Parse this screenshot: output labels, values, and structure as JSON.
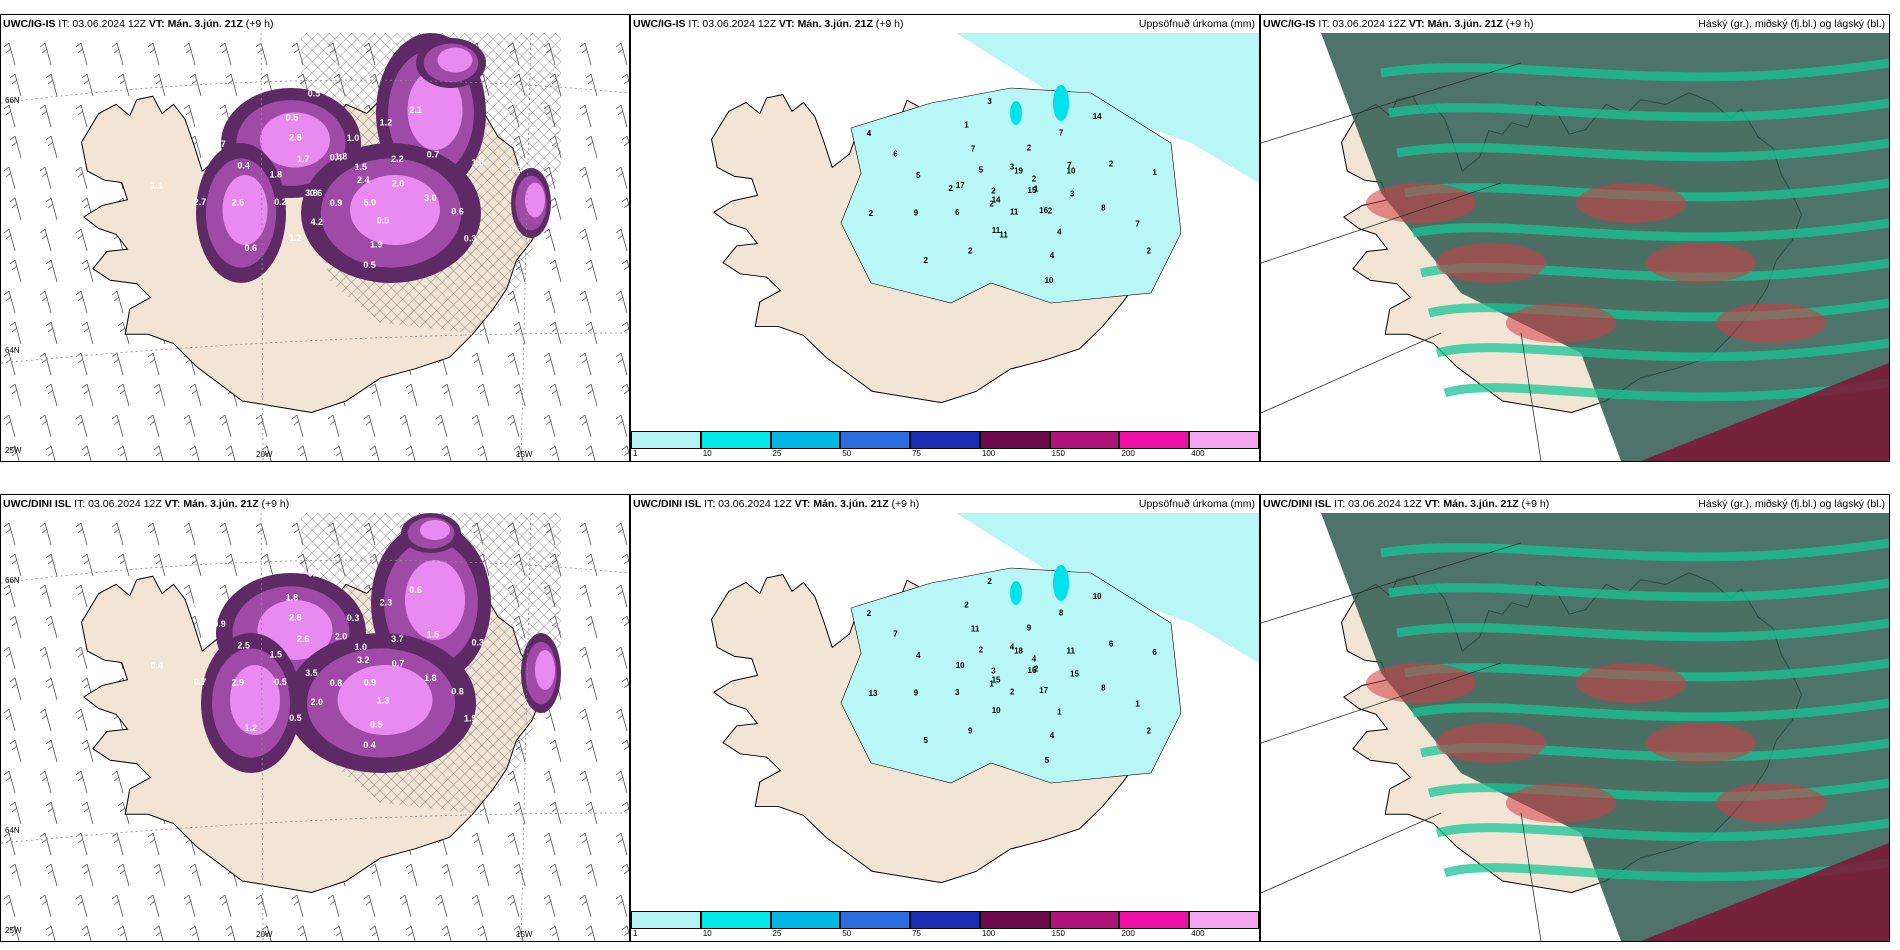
{
  "rows": [
    {
      "model": "UWC/IG-IS",
      "panels": [
        {
          "init": "IT: 03.06.2024 12Z",
          "valid": "VT: Mán. 3.jún. 21Z",
          "lead": "(+9 h)",
          "title": ""
        },
        {
          "init": "IT: 03.06.2024 12Z",
          "valid": "VT: Mán. 3.jún. 21Z",
          "lead": "(+9 h)",
          "title": "Uppsöfnuð úrkoma (mm)"
        },
        {
          "init": "IT: 03.06.2024 12Z",
          "valid": "VT: Mán. 3.jún. 21Z",
          "lead": "(+9 h)",
          "title": "Háský (gr.), miðský (fj.bl.) og lágský (bl.)"
        }
      ],
      "precip_values": [
        "15",
        "14",
        "19",
        "16",
        "17",
        "10",
        "11",
        "7",
        "8",
        "9",
        "7",
        "4",
        "6",
        "1",
        "2",
        "3",
        "2",
        "2",
        "2",
        "11",
        "5",
        "3",
        "6",
        "2",
        "4",
        "5",
        "2",
        "2",
        "1",
        "7",
        "2",
        "14",
        "10",
        "4",
        "1",
        "2",
        "3",
        "2",
        "2",
        "7",
        "11"
      ],
      "wind_values": [
        "2.4",
        "3.8",
        "1.8",
        "5.0",
        "1.8",
        "2.2",
        "4.2",
        "2.8",
        "3.0",
        "2.5",
        "1.2",
        "1.9",
        "0.7",
        "1.0",
        "0.6",
        "0.5",
        "0.3",
        "1.1",
        "1.5",
        "0.9",
        "1.7",
        "2.0",
        "0.2",
        "1.0",
        "0.5",
        "0.4",
        "0.7",
        "1.2",
        "0.5",
        "0.6",
        "2.7",
        "2.1",
        "0.5",
        "1.6",
        "0.3",
        "0.6",
        "0.4"
      ]
    },
    {
      "model": "UWC/DINI ISL",
      "panels": [
        {
          "init": "IT: 03.06.2024 12Z",
          "valid": "VT: Mán. 3.jún. 21Z",
          "lead": "(+9 h)",
          "title": ""
        },
        {
          "init": "IT: 03.06.2024 12Z",
          "valid": "VT: Mán. 3.jún. 21Z",
          "lead": "(+9 h)",
          "title": "Uppsöfnuð úrkoma (mm)"
        },
        {
          "init": "IT: 03.06.2024 12Z",
          "valid": "VT: Mán. 3.jún. 21Z",
          "lead": "(+9 h)",
          "title": "Háský (gr.), miðský (fj.bl.) og lágský (bl.)"
        }
      ],
      "precip_values": [
        "16",
        "15",
        "18",
        "17",
        "10",
        "11",
        "10",
        "11",
        "8",
        "9",
        "8",
        "4",
        "7",
        "6",
        "5",
        "2",
        "2",
        "3",
        "4",
        "2",
        "2",
        "15",
        "3",
        "9",
        "1",
        "4",
        "6",
        "9",
        "2",
        "1",
        "13",
        "10",
        "5",
        "2",
        "2",
        "1",
        "4"
      ],
      "wind_values": [
        "3.2",
        "3.5",
        "2.0",
        "0.9",
        "1.5",
        "3.7",
        "2.0",
        "2.6",
        "1.8",
        "2.9",
        "2.3",
        "0.5",
        "0.9",
        "0.3",
        "1.2",
        "0.2",
        "1.5",
        "0.4",
        "1.0",
        "0.8",
        "2.6",
        "0.7",
        "0.5",
        "0.3",
        "1.3",
        "2.5",
        "1.5",
        "0.5",
        "1.8",
        "0.8",
        "0.7",
        "0.6",
        "0.4",
        "0.3"
      ]
    }
  ],
  "axis_labels": {
    "lat66": "66N",
    "lat64": "64N",
    "lon20": "20W",
    "lon15": "15W",
    "lon25": "25W"
  },
  "legend": {
    "ticks": [
      "1",
      "10",
      "25",
      "50",
      "75",
      "100",
      "150",
      "200",
      "400"
    ],
    "colors": [
      "#b3f5f5",
      "#00e9e9",
      "#00b8e6",
      "#2a6de0",
      "#1a2db5",
      "#6e0a4e",
      "#b0127b",
      "#f010a8",
      "#f6a6f0"
    ]
  },
  "colors": {
    "land": "#f3e5d6",
    "ocean": "#ffffff",
    "precip_light": "#b9f7f7",
    "precip_mid": "#00e1e8",
    "wind_dark": "#5d2a66",
    "wind_mid": "#a04aa8",
    "wind_light": "#e98af0",
    "cloud_high": "#2e5b50",
    "cloud_mid": "#16c696",
    "cloud_low": "#d23b40"
  }
}
